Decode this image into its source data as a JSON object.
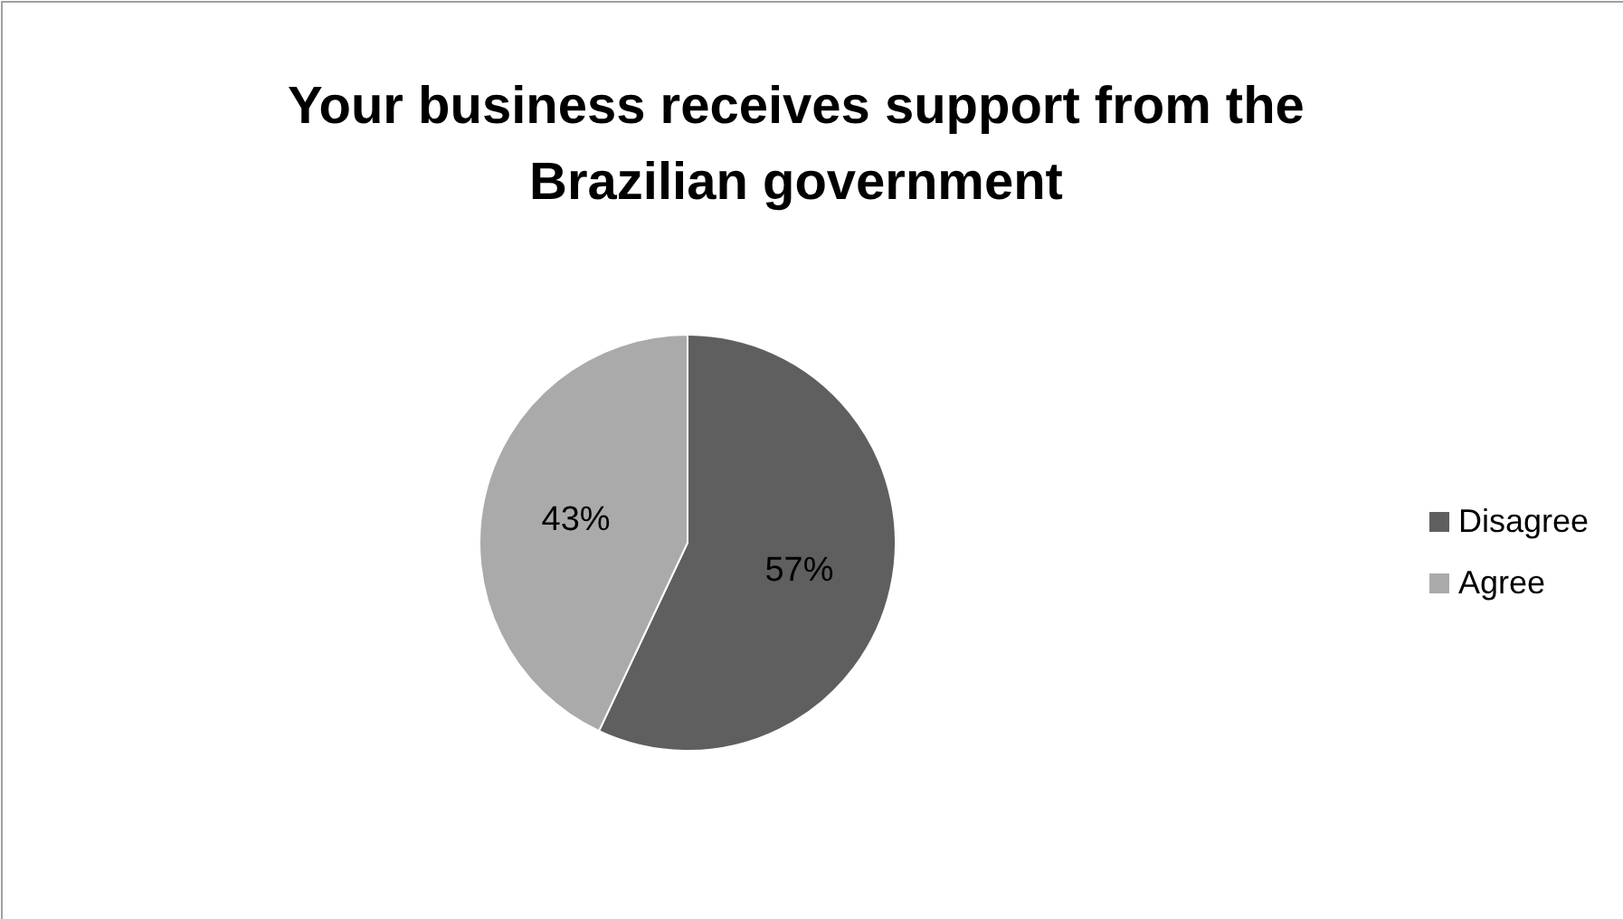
{
  "chart_data": {
    "type": "pie",
    "title": "Your business receives support from the Brazilian government",
    "categories": [
      "Disagree",
      "Agree"
    ],
    "values": [
      57,
      43
    ],
    "colors": [
      "#5f5f5f",
      "#aaaaaa"
    ],
    "value_labels": [
      "57%",
      "43%"
    ],
    "legend": "right"
  }
}
